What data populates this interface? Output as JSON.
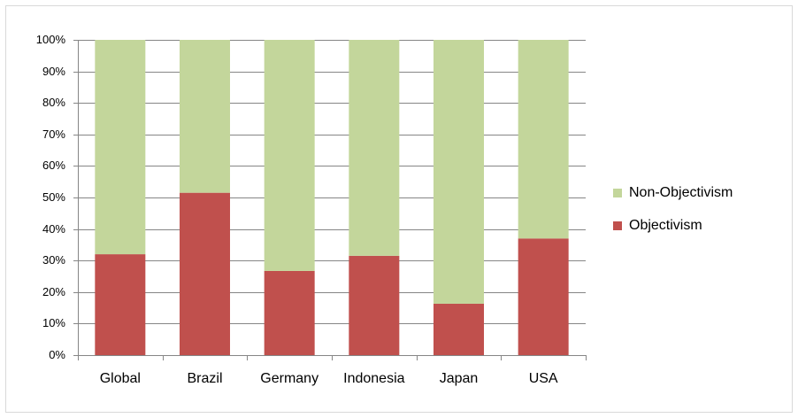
{
  "chart_data": {
    "type": "stacked_bar",
    "categories": [
      "Global",
      "Brazil",
      "Germany",
      "Indonesia",
      "Japan",
      "USA"
    ],
    "series": [
      {
        "name": "Objectivism",
        "color": "#c0504d",
        "values": [
          32,
          51.5,
          26.7,
          31.5,
          16.3,
          37
        ]
      },
      {
        "name": "Non-Objectivism",
        "color": "#c3d69b",
        "values": [
          68,
          48.5,
          73.3,
          68.5,
          83.7,
          63
        ]
      }
    ],
    "ylim": [
      0,
      100
    ],
    "yticks": [
      {
        "value": 0,
        "label": "0%"
      },
      {
        "value": 10,
        "label": "10%"
      },
      {
        "value": 20,
        "label": "20%"
      },
      {
        "value": 30,
        "label": "30%"
      },
      {
        "value": 40,
        "label": "40%"
      },
      {
        "value": 50,
        "label": "50%"
      },
      {
        "value": 60,
        "label": "60%"
      },
      {
        "value": 70,
        "label": "70%"
      },
      {
        "value": 80,
        "label": "80%"
      },
      {
        "value": 90,
        "label": "90%"
      },
      {
        "value": 100,
        "label": "100%"
      }
    ],
    "grid": true,
    "legend": "right"
  }
}
